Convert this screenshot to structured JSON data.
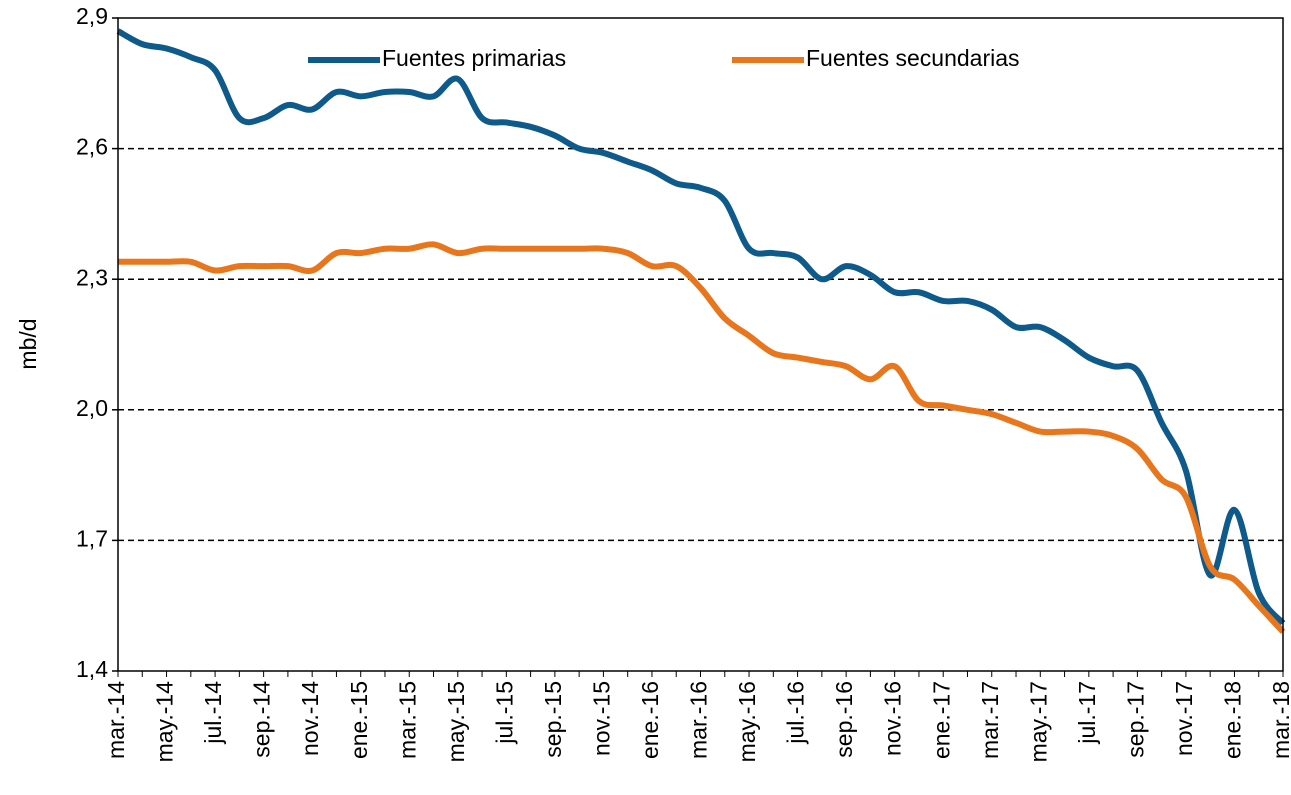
{
  "chart_data": {
    "type": "line",
    "y_label": "mb/d",
    "categories": [
      "mar.-14",
      null,
      "may.-14",
      null,
      "jul.-14",
      null,
      "sep.-14",
      null,
      "nov.-14",
      null,
      "ene.-15",
      null,
      "mar.-15",
      null,
      "may.-15",
      null,
      "jul.-15",
      null,
      "sep.-15",
      null,
      "nov.-15",
      null,
      "ene.-16",
      null,
      "mar.-16",
      null,
      "may.-16",
      null,
      "jul.-16",
      null,
      "sep.-16",
      null,
      "nov.-16",
      null,
      "ene.-17",
      null,
      "mar.-17",
      null,
      "may.-17",
      null,
      "jul.-17",
      null,
      "sep.-17",
      null,
      "nov.-17",
      null,
      "ene.-18",
      null,
      "mar.-18"
    ],
    "series": [
      {
        "name": "Fuentes primarias",
        "color": "#0e5a8a",
        "values": [
          2.87,
          2.84,
          2.83,
          2.81,
          2.78,
          2.67,
          2.67,
          2.7,
          2.69,
          2.73,
          2.72,
          2.73,
          2.73,
          2.72,
          2.76,
          2.67,
          2.66,
          2.65,
          2.63,
          2.6,
          2.59,
          2.57,
          2.55,
          2.52,
          2.51,
          2.48,
          2.37,
          2.36,
          2.35,
          2.3,
          2.33,
          2.31,
          2.27,
          2.27,
          2.25,
          2.25,
          2.23,
          2.19,
          2.19,
          2.16,
          2.12,
          2.1,
          2.09,
          1.97,
          1.86,
          1.62,
          1.77,
          1.58,
          1.51
        ]
      },
      {
        "name": "Fuentes secundarias",
        "color": "#e8761c",
        "values": [
          2.34,
          2.34,
          2.34,
          2.34,
          2.32,
          2.33,
          2.33,
          2.33,
          2.32,
          2.36,
          2.36,
          2.37,
          2.37,
          2.38,
          2.36,
          2.37,
          2.37,
          2.37,
          2.37,
          2.37,
          2.37,
          2.36,
          2.33,
          2.33,
          2.28,
          2.21,
          2.17,
          2.13,
          2.12,
          2.11,
          2.1,
          2.07,
          2.1,
          2.02,
          2.01,
          2.0,
          1.99,
          1.97,
          1.95,
          1.95,
          1.95,
          1.94,
          1.91,
          1.84,
          1.8,
          1.64,
          1.61,
          1.55,
          1.49
        ]
      }
    ],
    "ylim": [
      1.4,
      2.9
    ],
    "yticks": [
      {
        "value": 1.4,
        "label": "1,4"
      },
      {
        "value": 1.7,
        "label": "1,7"
      },
      {
        "value": 2.0,
        "label": "2,0"
      },
      {
        "value": 2.3,
        "label": "2,3"
      },
      {
        "value": 2.6,
        "label": "2,6"
      },
      {
        "value": 2.9,
        "label": "2,9"
      }
    ],
    "grid": true,
    "legend": "top"
  }
}
